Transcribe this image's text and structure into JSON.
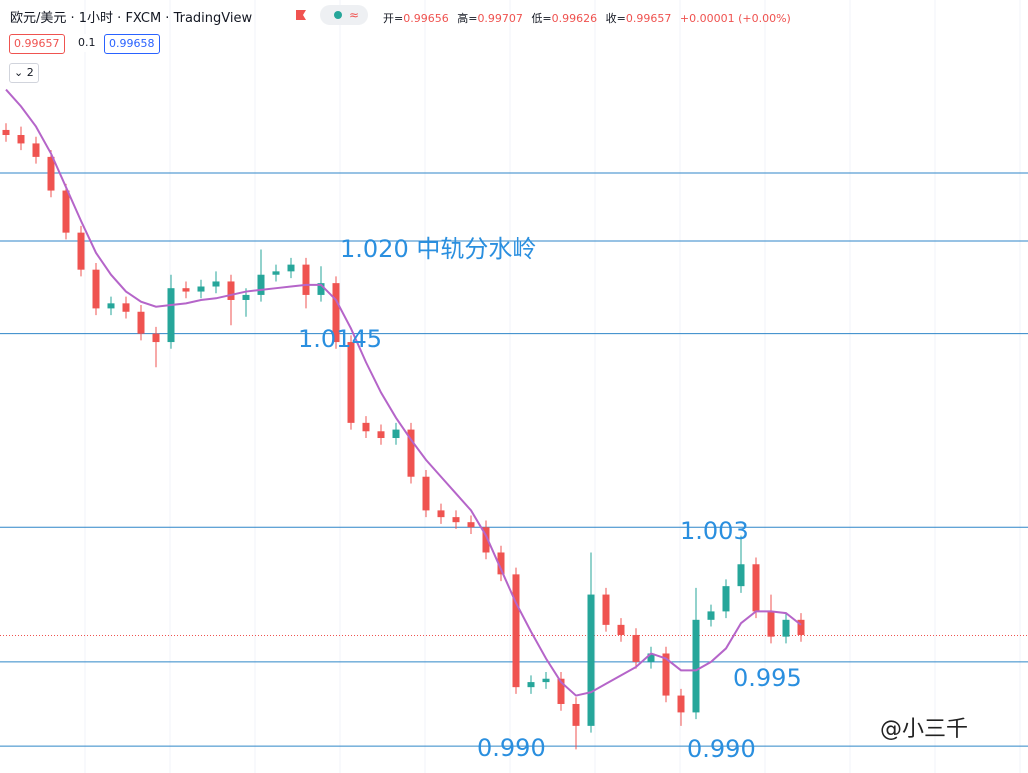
{
  "header": {
    "symbol": "欧元/美元 · 1小时 · FXCM · TradingView",
    "ohlc": [
      {
        "label": "开=",
        "value": 0.99656
      },
      {
        "label": "高=",
        "value": 0.99707
      },
      {
        "label": "低=",
        "value": 0.99626
      },
      {
        "label": "收=",
        "value": 0.99657
      }
    ],
    "change": "+0.00001 (+0.00%)",
    "bid": 0.99657,
    "spread": 0.1,
    "ask": 0.99658,
    "indicators": 2
  },
  "chart_data": {
    "type": "candlestick",
    "ylim": [
      0.9884,
      1.03432
    ],
    "up_color": "#26a69a",
    "down_color": "#ef5350",
    "ohlc": [
      [
        1.0266,
        1.027,
        1.0259,
        1.0263
      ],
      [
        1.0263,
        1.0268,
        1.0254,
        1.0258
      ],
      [
        1.0258,
        1.0262,
        1.0246,
        1.025
      ],
      [
        1.025,
        1.0254,
        1.0226,
        1.023
      ],
      [
        1.023,
        1.0234,
        1.0201,
        1.0205
      ],
      [
        1.0205,
        1.0209,
        1.0179,
        1.0183
      ],
      [
        1.0183,
        1.0187,
        1.0156,
        1.016
      ],
      [
        1.016,
        1.0167,
        1.0156,
        1.0163
      ],
      [
        1.0163,
        1.0167,
        1.0154,
        1.0158
      ],
      [
        1.0158,
        1.0162,
        1.0141,
        1.0145
      ],
      [
        1.0145,
        1.0149,
        1.0125,
        1.014
      ],
      [
        1.014,
        1.018,
        1.0136,
        1.0172
      ],
      [
        1.0172,
        1.0176,
        1.0166,
        1.017
      ],
      [
        1.017,
        1.0177,
        1.0166,
        1.0173
      ],
      [
        1.0173,
        1.0182,
        1.0169,
        1.0176
      ],
      [
        1.0176,
        1.018,
        1.015,
        1.0165
      ],
      [
        1.0165,
        1.0172,
        1.0155,
        1.0168
      ],
      [
        1.0168,
        1.0195,
        1.0164,
        1.018
      ],
      [
        1.018,
        1.0186,
        1.0176,
        1.0182
      ],
      [
        1.0182,
        1.019,
        1.0178,
        1.0186
      ],
      [
        1.0186,
        1.019,
        1.016,
        1.0168
      ],
      [
        1.0168,
        1.0185,
        1.0164,
        1.0175
      ],
      [
        1.0175,
        1.0179,
        1.0136,
        1.014
      ],
      [
        1.014,
        1.0144,
        1.0088,
        1.0092
      ],
      [
        1.0092,
        1.0096,
        1.0083,
        1.0087
      ],
      [
        1.0087,
        1.0091,
        1.0079,
        1.0083
      ],
      [
        1.0083,
        1.0092,
        1.0079,
        1.0088
      ],
      [
        1.0088,
        1.0092,
        1.0056,
        1.006
      ],
      [
        1.006,
        1.0064,
        1.0036,
        1.004
      ],
      [
        1.004,
        1.0044,
        1.0032,
        1.0036
      ],
      [
        1.0036,
        1.004,
        1.0029,
        1.0033
      ],
      [
        1.0033,
        1.0037,
        1.0026,
        1.003
      ],
      [
        1.003,
        1.0034,
        1.0011,
        1.0015
      ],
      [
        1.0015,
        1.0019,
        0.9998,
        1.0002
      ],
      [
        1.0002,
        1.0006,
        0.9931,
        0.9935
      ],
      [
        0.9935,
        0.9942,
        0.9931,
        0.9938
      ],
      [
        0.9938,
        0.9944,
        0.9934,
        0.994
      ],
      [
        0.994,
        0.9944,
        0.9921,
        0.9925
      ],
      [
        0.9925,
        0.9929,
        0.9898,
        0.9912
      ],
      [
        0.9912,
        1.0015,
        0.9908,
        0.999
      ],
      [
        0.999,
        0.9994,
        0.9968,
        0.9972
      ],
      [
        0.9972,
        0.9976,
        0.9962,
        0.9966
      ],
      [
        0.9966,
        0.997,
        0.9946,
        0.995
      ],
      [
        0.995,
        0.9959,
        0.9946,
        0.9955
      ],
      [
        0.9955,
        0.9959,
        0.9926,
        0.993
      ],
      [
        0.993,
        0.9934,
        0.9912,
        0.992
      ],
      [
        0.992,
        0.9994,
        0.9916,
        0.9975
      ],
      [
        0.9975,
        0.9984,
        0.9971,
        0.998
      ],
      [
        0.998,
        0.9999,
        0.9976,
        0.9995
      ],
      [
        0.9995,
        1.0025,
        0.9991,
        1.0008
      ],
      [
        1.0008,
        1.0012,
        0.9976,
        0.998
      ],
      [
        0.998,
        0.999,
        0.9961,
        0.9965
      ],
      [
        0.9965,
        0.9979,
        0.9961,
        0.9975
      ],
      [
        0.9975,
        0.9979,
        0.9962,
        0.9966
      ]
    ],
    "ma": {
      "color": "#b565c9",
      "values": [
        1.029,
        1.028,
        1.0268,
        1.0252,
        1.0232,
        1.0212,
        1.0193,
        1.018,
        1.017,
        1.0164,
        1.0161,
        1.0162,
        1.0163,
        1.0165,
        1.0166,
        1.0168,
        1.017,
        1.0171,
        1.0172,
        1.0173,
        1.0174,
        1.0174,
        1.0165,
        1.0148,
        1.0128,
        1.011,
        1.0095,
        1.0082,
        1.007,
        1.006,
        1.005,
        1.004,
        1.0025,
        1.0005,
        0.9985,
        0.9968,
        0.9952,
        0.9938,
        0.993,
        0.9932,
        0.9937,
        0.9942,
        0.9947,
        0.9955,
        0.9952,
        0.9945,
        0.9945,
        0.995,
        0.9958,
        0.9973,
        0.998,
        0.998,
        0.9979,
        0.9972
      ]
    },
    "levels": {
      "color": "#2f86c8",
      "values": [
        1.02404,
        1.02,
        1.0145,
        1.003,
        0.995,
        0.99
      ]
    },
    "last_price": {
      "color": "#ef5350",
      "value": 0.99657
    },
    "annotations": [
      "1.020 中轨分水岭",
      "1.0145",
      "1.003",
      "0.995",
      "0.990",
      "0.990"
    ]
  },
  "watermark": "@小三千"
}
